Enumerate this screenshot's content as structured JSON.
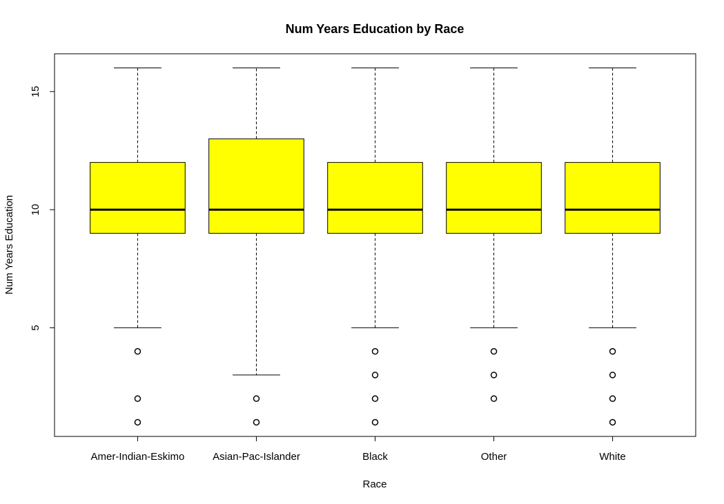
{
  "chart_data": {
    "type": "boxplot",
    "title": "Num Years Education by Race",
    "xlabel": "Race",
    "ylabel": "Num Years Education",
    "ylim": [
      0.4,
      16.6
    ],
    "yticks": [
      5,
      10,
      15
    ],
    "grid": false,
    "box_color": "#ffff00",
    "categories": [
      "Amer-Indian-Eskimo",
      "Asian-Pac-Islander",
      "Black",
      "Other",
      "White"
    ],
    "boxes": [
      {
        "lower_whisker": 5,
        "q1": 9,
        "median": 10,
        "q3": 12,
        "upper_whisker": 16,
        "outliers": [
          4,
          2,
          1
        ]
      },
      {
        "lower_whisker": 3,
        "q1": 9,
        "median": 10,
        "q3": 13,
        "upper_whisker": 16,
        "outliers": [
          2,
          1
        ]
      },
      {
        "lower_whisker": 5,
        "q1": 9,
        "median": 10,
        "q3": 12,
        "upper_whisker": 16,
        "outliers": [
          4,
          3,
          2,
          1
        ]
      },
      {
        "lower_whisker": 5,
        "q1": 9,
        "median": 10,
        "q3": 12,
        "upper_whisker": 16,
        "outliers": [
          4,
          3,
          2
        ]
      },
      {
        "lower_whisker": 5,
        "q1": 9,
        "median": 10,
        "q3": 12,
        "upper_whisker": 16,
        "outliers": [
          4,
          3,
          2,
          1
        ]
      }
    ]
  }
}
